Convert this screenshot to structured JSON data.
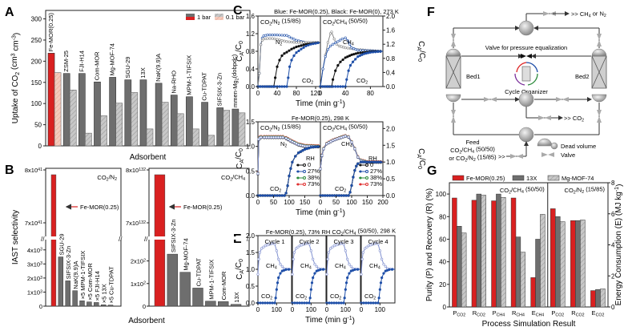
{
  "panels": {
    "A": "A",
    "B": "B",
    "C": "C",
    "D": "D",
    "E": "E",
    "F": "F",
    "G": "G"
  },
  "colors": {
    "red": "#d92020",
    "red_light": "#f2c4b4",
    "gray_dark": "#6e6e6e",
    "gray_light": "#c4c4c4",
    "blue": "#1f4fa8",
    "blue_light": "#8090d0",
    "black": "#111111",
    "green": "#2a8a3a",
    "red_line": "#e03030"
  },
  "chart_data": [
    {
      "id": "A",
      "type": "bar",
      "title": "",
      "xlabel": "Adsorbent",
      "ylabel": "Uptake of CO2 (cm3 cm-3)",
      "ylim": [
        0,
        320
      ],
      "yticks": [
        0,
        50,
        100,
        150,
        200,
        250,
        300
      ],
      "legend": {
        "position": "top-right",
        "entries": [
          "1 bar",
          "0.1 bar"
        ]
      },
      "categories": [
        "Fe-MOR(0.25)",
        "ZSM-25",
        "FJI-H14",
        "Com-MOR",
        "Mg-MOF-74",
        "SGU-29",
        "13X",
        "NaK(9.9)A",
        "Na-RHO",
        "MPM-1-TIFSIX",
        "Cu-TDPAT",
        "SIFSIX-3-Zn",
        "mmen-Mg2(dobpdc)"
      ],
      "series": [
        {
          "name": "1 bar",
          "values": [
            219,
            171,
            171,
            151,
            162,
            156,
            156,
            148,
            120,
            116,
            103,
            90,
            87
          ]
        },
        {
          "name": "0.1 bar",
          "values": [
            173,
            132,
            30,
            71,
            101,
            126,
            40,
            103,
            76,
            40,
            25,
            84,
            78
          ]
        }
      ]
    },
    {
      "id": "B1",
      "type": "bar",
      "title": "CO2/N2",
      "xlabel": "Adsorbent",
      "ylabel": "IAST selectivity",
      "axis_break": true,
      "upper_ticks": [
        "7x10^41",
        "8x10^41"
      ],
      "lower_ticks": [
        "0",
        "1x10^3",
        "2x10^3",
        "3x10^3",
        "4x10^3"
      ],
      "lower_ylim": [
        0,
        4500
      ],
      "annotation": "Fe-MOR(0.25)",
      "categories": [
        "Fe-MOR(0.25)",
        "SGU-29",
        "SIFSIX-3-Zn",
        "NaK(9.9)A",
        "MPM-1-TIFSIX",
        "Com-MOR",
        "FJI-H14",
        "13X",
        "Cu-TDPAT"
      ],
      "bar_notes": [
        "",
        "",
        "",
        "",
        "x5",
        "x5",
        "x5",
        "x5",
        "x5"
      ],
      "values": [
        "7.9x10^41",
        3500,
        1800,
        1100,
        380,
        300,
        260,
        100,
        80
      ]
    },
    {
      "id": "B2",
      "type": "bar",
      "title": "CO2/CH4",
      "xlabel": "Adsorbent",
      "axis_break": true,
      "upper_ticks": [
        "7x10^132",
        "8x10^132"
      ],
      "lower_ticks": [
        "0",
        "1x10^2",
        "2x10^2"
      ],
      "lower_ylim": [
        0,
        280
      ],
      "annotation": "Fe-MOR(0.25)",
      "categories": [
        "Fe-MOR(0.25)",
        "SIFSIX-3-Zn",
        "Mg-MOF-74",
        "Cu-TDPAT",
        "MPM-1-TIFSIX",
        "Com-MOR",
        "13X"
      ],
      "values": [
        "7.7x10^132",
        230,
        150,
        80,
        22,
        20,
        8
      ]
    },
    {
      "id": "C",
      "type": "line",
      "title": "Blue: Fe-MOR(0.25), Black: Fe-MOR(0), 273 K",
      "xlabel": "Time (min g-1)",
      "ylabel": "CA/C0",
      "subplots": [
        {
          "label": "CO2/N2 (15/85)",
          "xlim": [
            0,
            130
          ],
          "ylim": [
            0,
            1.6
          ],
          "xticks": [
            0,
            40,
            80,
            120
          ],
          "yticks": [
            0.0,
            0.4,
            0.8,
            1.2,
            1.6
          ],
          "annotations": [
            "N2",
            "CO2"
          ],
          "series": [
            {
              "name": "N2 Fe-MOR(0.25)",
              "color": "blue",
              "open": true,
              "x": [
                0,
                3,
                6,
                9,
                12,
                20,
                40,
                60,
                70,
                80,
                100,
                130
              ],
              "y": [
                0,
                0.3,
                0.95,
                1.1,
                1.15,
                1.17,
                1.17,
                1.16,
                1.1,
                1.05,
                1.0,
                1.0
              ]
            },
            {
              "name": "N2 Fe-MOR(0)",
              "color": "gray",
              "open": true,
              "x": [
                0,
                3,
                6,
                9,
                12,
                20,
                30,
                40,
                60,
                80,
                100,
                130
              ],
              "y": [
                0,
                0.3,
                0.95,
                1.05,
                1.08,
                1.09,
                1.09,
                1.07,
                1.02,
                1.0,
                1.0,
                1.0
              ]
            },
            {
              "name": "CO2 Fe-MOR(0)",
              "color": "black",
              "open": false,
              "x": [
                0,
                33,
                36,
                40,
                45,
                50,
                55,
                60,
                70,
                80,
                100,
                130
              ],
              "y": [
                0,
                0,
                0.2,
                0.45,
                0.6,
                0.7,
                0.75,
                0.78,
                0.85,
                0.9,
                0.96,
                1.0
              ]
            },
            {
              "name": "CO2 Fe-MOR(0.25)",
              "color": "blue",
              "open": false,
              "x": [
                0,
                60,
                63,
                66,
                70,
                75,
                80,
                90,
                100,
                110,
                130
              ],
              "y": [
                0,
                0,
                0.2,
                0.45,
                0.6,
                0.7,
                0.77,
                0.85,
                0.92,
                0.96,
                1.0
              ]
            }
          ]
        },
        {
          "label": "CO2/CH4 (50/50)",
          "xlim": [
            0,
            100
          ],
          "ylim": [
            0,
            2.0
          ],
          "xticks": [
            0,
            40,
            80
          ],
          "yticks": [
            0.0,
            0.4,
            0.8,
            1.2,
            1.6,
            2.0
          ],
          "annotations": [
            "CH4",
            "CO2"
          ],
          "series": [
            {
              "name": "CH4 Fe-MOR(0)",
              "color": "gray",
              "open": true,
              "x": [
                0,
                4,
                8,
                12,
                16,
                18,
                22,
                26,
                30,
                40,
                60,
                100
              ],
              "y": [
                0,
                0.5,
                0.9,
                1.25,
                1.5,
                1.55,
                1.35,
                1.2,
                1.15,
                1.1,
                1.05,
                1.0
              ]
            },
            {
              "name": "CH4 Fe-MOR(0.25)",
              "color": "blue",
              "open": true,
              "x": [
                0,
                4,
                8,
                12,
                16,
                20,
                28,
                35,
                40,
                44,
                50,
                60,
                100
              ],
              "y": [
                0,
                0.5,
                0.85,
                1.05,
                1.15,
                1.2,
                1.28,
                1.35,
                1.38,
                1.3,
                1.1,
                1.03,
                1.0
              ]
            },
            {
              "name": "CO2 Fe-MOR(0)",
              "color": "black",
              "open": false,
              "x": [
                0,
                18,
                20,
                24,
                28,
                32,
                40,
                50,
                60,
                80,
                100
              ],
              "y": [
                0,
                0,
                0.2,
                0.45,
                0.6,
                0.7,
                0.82,
                0.9,
                0.95,
                0.99,
                1.0
              ]
            },
            {
              "name": "CO2 Fe-MOR(0.25)",
              "color": "blue",
              "open": false,
              "x": [
                0,
                40,
                42,
                45,
                48,
                52,
                60,
                70,
                80,
                100
              ],
              "y": [
                0,
                0,
                0.2,
                0.45,
                0.6,
                0.7,
                0.85,
                0.93,
                0.97,
                1.0
              ]
            }
          ]
        }
      ]
    },
    {
      "id": "D",
      "type": "line",
      "title": "Fe-MOR(0.25), 298 K",
      "xlabel": "Time (min g-1)",
      "ylabel": "CA/C0",
      "legend": {
        "title": "RH",
        "position": "bottom-right",
        "entries": [
          "0",
          "27%",
          "38%",
          "73%"
        ]
      },
      "subplots": [
        {
          "label": "CO2/N2 (15/85)",
          "xlim": [
            0,
            200
          ],
          "ylim": [
            0,
            1.5
          ],
          "xticks": [
            0,
            50,
            100,
            150
          ],
          "yticks": [
            0.0,
            0.5,
            1.0,
            1.5
          ],
          "annotations": [
            "N2",
            "CO2"
          ],
          "n2": {
            "x": [
              0,
              3,
              6,
              10,
              20,
              50,
              80,
              90,
              110,
              130,
              150,
              200
            ],
            "y": [
              0.45,
              1.15,
              1.18,
              1.19,
              1.19,
              1.19,
              1.19,
              1.17,
              1.1,
              1.04,
              1.01,
              1.0
            ]
          },
          "co2": {
            "x": [
              0,
              85,
              90,
              95,
              100,
              105,
              110,
              120,
              130,
              150,
              170,
              200
            ],
            "y": [
              0,
              0,
              0.05,
              0.2,
              0.4,
              0.55,
              0.68,
              0.8,
              0.87,
              0.94,
              0.98,
              1.0
            ]
          }
        },
        {
          "label": "CO2/CH4 (50/50)",
          "xlim": [
            0,
            200
          ],
          "ylim": [
            0,
            2.2
          ],
          "xticks": [
            0,
            50,
            100,
            150,
            200
          ],
          "yticks": [
            0.0,
            0.5,
            1.0,
            1.5,
            2.0
          ],
          "annotations": [
            "CH4",
            "CO2"
          ],
          "ch4": {
            "x": [
              0,
              5,
              10,
              20,
              40,
              60,
              80,
              90,
              100,
              110,
              120,
              130,
              150,
              200
            ],
            "y": [
              0.8,
              1.2,
              1.4,
              1.55,
              1.65,
              1.72,
              1.78,
              1.75,
              1.6,
              1.4,
              1.15,
              1.05,
              1.0,
              1.0
            ]
          },
          "co2": {
            "x": [
              0,
              90,
              95,
              100,
              105,
              110,
              115,
              120,
              130,
              150,
              200
            ],
            "y": [
              0,
              0,
              0.1,
              0.3,
              0.55,
              0.75,
              0.88,
              0.95,
              1.0,
              1.0,
              1.0
            ]
          }
        }
      ]
    },
    {
      "id": "E",
      "type": "line",
      "title": "Fe-MOR(0.25), 73% RH CO2/CH4 (50/50), 298 K",
      "xlabel": "Time (min g-1)",
      "ylabel": "CA/C0",
      "ylim": [
        0,
        2.0
      ],
      "yticks": [
        0.0,
        0.5,
        1.0,
        1.5,
        2.0
      ],
      "xticks": [
        0,
        100
      ],
      "xlim": [
        0,
        180
      ],
      "cycles": [
        "Cycle 1",
        "Cycle 2",
        "Cycle 3",
        "Cycle 4"
      ],
      "annotations": [
        "CH4",
        "CO2"
      ],
      "ch4": {
        "x": [
          0,
          5,
          10,
          20,
          40,
          60,
          80,
          90,
          100,
          110,
          120,
          140,
          180
        ],
        "y": [
          0.85,
          1.3,
          1.5,
          1.62,
          1.7,
          1.74,
          1.77,
          1.75,
          1.55,
          1.3,
          1.15,
          1.02,
          1.0
        ]
      },
      "co2": {
        "x": [
          0,
          90,
          95,
          100,
          105,
          110,
          120,
          130,
          150,
          180
        ],
        "y": [
          0,
          0,
          0.15,
          0.4,
          0.6,
          0.75,
          0.88,
          0.95,
          0.99,
          1.0
        ]
      }
    },
    {
      "id": "G",
      "type": "bar",
      "xlabel": "Process Simulation Result",
      "ylabel": "Purity (P) and Recovery (R) (%)",
      "ylabel_right": "Energy Consumption (E) (MJ kg-1)",
      "ylim": [
        0,
        110
      ],
      "ylim_right": [
        0,
        8
      ],
      "yticks": [
        0,
        20,
        40,
        60,
        80,
        100
      ],
      "yticks_right": [
        0,
        2,
        4,
        6,
        8
      ],
      "legend": {
        "position": "top",
        "entries": [
          "Fe-MOR(0.25)",
          "13X",
          "Mg-MOF-74"
        ]
      },
      "groups": [
        "CO2/CH4 (50/50)",
        "CO2/N2 (15/85)"
      ],
      "categories": [
        "P_CO2",
        "R_CO2",
        "P_CH4",
        "R_CH4",
        "E_CH4",
        "P_CO2",
        "R_CO2",
        "E_CO2"
      ],
      "series": [
        {
          "name": "Fe-MOR(0.25)",
          "values": [
            96.5,
            94.5,
            94,
            96.5,
            26,
            87,
            76.5,
            14.5
          ]
        },
        {
          "name": "13X",
          "values": [
            71.5,
            100,
            100,
            62,
            60,
            80,
            76.5,
            15.5
          ]
        },
        {
          "name": "Mg-MOF-74",
          "values": [
            65.5,
            99,
            97,
            48.5,
            82,
            75.5,
            77,
            16
          ]
        }
      ]
    }
  ],
  "diagram_F": {
    "bed1": "Bed1",
    "bed2": "Bed2",
    "valve_label": "Valve for pressure equalization",
    "cycle_organizer": "Cycle Organizer",
    "out_top": "CH4 or N2",
    "out_co2": "CO2",
    "feed_title": "Feed",
    "feed_line1": "CO2/CH4 (50/50)",
    "feed_line2": "or CO2/N2 (15/85)",
    "legend_dead": "Dead volume",
    "legend_valve": "Valve"
  }
}
